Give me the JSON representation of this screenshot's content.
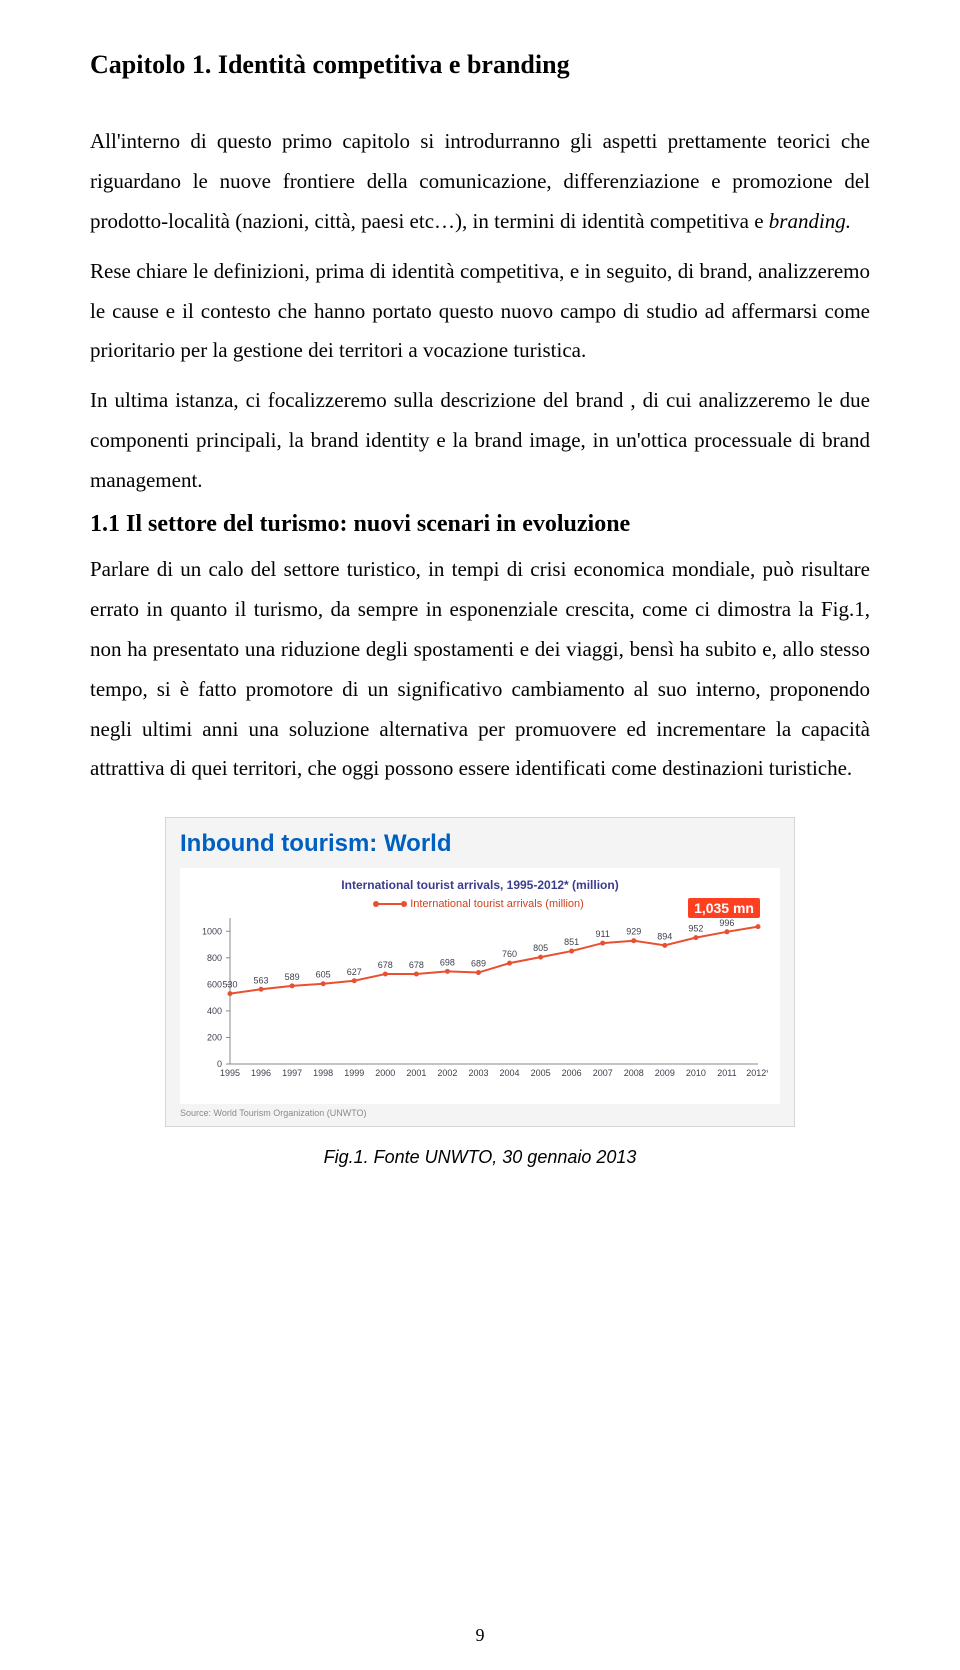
{
  "chapterTitle": "Capitolo 1. Identità competitiva e branding",
  "para1_a": "All'interno di questo primo capitolo si introdurranno gli aspetti prettamente teorici che riguardano le nuove frontiere della comunicazione, differenziazione e promozione del prodotto-località (nazioni, città, paesi etc…), in termini di identità competitiva e ",
  "para1_b": "branding.",
  "para2": "Rese chiare le definizioni, prima di identità competitiva, e in seguito, di brand, analizzeremo le cause e il contesto che hanno portato questo nuovo campo di studio ad affermarsi come prioritario per la gestione dei territori a vocazione turistica.",
  "para3": "In ultima istanza, ci focalizzeremo sulla descrizione del brand , di cui analizzeremo le due componenti principali, la brand identity e la brand image, in un'ottica processuale di brand management.",
  "sectionTitle": "1.1 Il settore del turismo: nuovi scenari in evoluzione",
  "para4": "Parlare di un calo del settore turistico, in tempi di crisi economica mondiale, può risultare errato in quanto il turismo, da sempre in esponenziale crescita, come ci dimostra la Fig.1, non ha presentato una riduzione degli spostamenti e dei viaggi, bensì ha subito e, allo stesso tempo, si è fatto promotore di un significativo cambiamento al suo interno, proponendo negli ultimi anni una soluzione alternativa per promuovere ed incrementare la capacità attrattiva di quei territori, che oggi possono essere identificati come destinazioni turistiche.",
  "chart": {
    "type": "line",
    "mainTitle": "Inbound tourism: World",
    "subTitle": "International tourist arrivals, 1995-2012* (million)",
    "legendLabel": "International tourist arrivals (million)",
    "callout": "1,035 mn",
    "xCategories": [
      "1995",
      "1996",
      "1997",
      "1998",
      "1999",
      "2000",
      "2001",
      "2002",
      "2003",
      "2004",
      "2005",
      "2006",
      "2007",
      "2008",
      "2009",
      "2010",
      "2011",
      "2012*"
    ],
    "values": [
      530,
      563,
      589,
      605,
      627,
      678,
      678,
      698,
      689,
      760,
      805,
      851,
      911,
      929,
      894,
      952,
      996,
      1035
    ],
    "yTicks": [
      0,
      200,
      400,
      600,
      800,
      1000
    ],
    "ylim": [
      0,
      1100
    ],
    "lineColor": "#e85030",
    "markerColor": "#e85030",
    "labelColor": "#404050",
    "axisColor": "#888888",
    "gridColor": "#dddddd",
    "background": "#ffffff",
    "labelFontsize": 9,
    "tickFontsize": 9,
    "source": "Source: World Tourism Organization (UNWTO)"
  },
  "figCaption": "Fig.1. Fonte UNWTO, 30 gennaio 2013",
  "pageNumber": "9"
}
